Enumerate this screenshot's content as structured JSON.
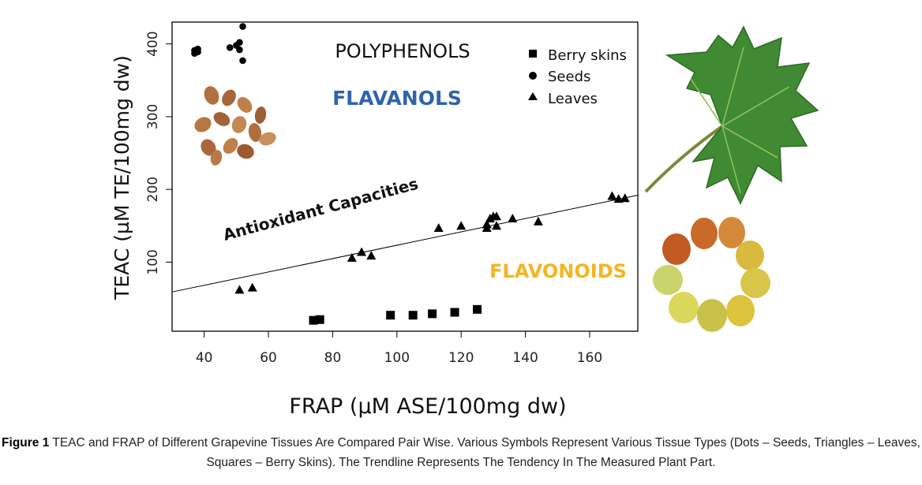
{
  "chart_data": {
    "type": "scatter",
    "title": "",
    "xlabel": "FRAP (µM ASE/100mg dw)",
    "ylabel": "TEAC (µM TE/100mg dw)",
    "xlim": [
      30,
      175
    ],
    "ylim": [
      5,
      430
    ],
    "xticks": [
      40,
      60,
      80,
      100,
      120,
      140,
      160
    ],
    "yticks": [
      100,
      200,
      300,
      400
    ],
    "grid": false,
    "legend_position": "top-right",
    "series": [
      {
        "name": "Berry skins",
        "marker": "square",
        "points": [
          [
            74,
            20
          ],
          [
            76,
            21
          ],
          [
            98,
            27
          ],
          [
            105,
            27
          ],
          [
            111,
            29
          ],
          [
            118,
            31
          ],
          [
            125,
            35
          ]
        ]
      },
      {
        "name": "Seeds",
        "marker": "circle",
        "points": [
          [
            37,
            391
          ],
          [
            37,
            387
          ],
          [
            38,
            393
          ],
          [
            38,
            389
          ],
          [
            48,
            395
          ],
          [
            50,
            398
          ],
          [
            51,
            402
          ],
          [
            51,
            392
          ],
          [
            52,
            424
          ],
          [
            52,
            377
          ]
        ]
      },
      {
        "name": "Leaves",
        "marker": "triangle",
        "points": [
          [
            51,
            62
          ],
          [
            55,
            65
          ],
          [
            86,
            106
          ],
          [
            89,
            114
          ],
          [
            92,
            109
          ],
          [
            113,
            147
          ],
          [
            120,
            150
          ],
          [
            128,
            147
          ],
          [
            128,
            152
          ],
          [
            129,
            160
          ],
          [
            130,
            163
          ],
          [
            131,
            150
          ],
          [
            131,
            163
          ],
          [
            136,
            160
          ],
          [
            144,
            156
          ],
          [
            167,
            191
          ],
          [
            169,
            187
          ],
          [
            171,
            188
          ]
        ]
      }
    ],
    "trendline": {
      "x": [
        30,
        175
      ],
      "y": [
        59,
        192
      ]
    },
    "annotations": {
      "polyphenols": "POLYPHENOLS",
      "flavanols": "FLAVANOLS",
      "flavonoids": "FLAVONOIDS",
      "antioxidant": "Antioxidant Capacities"
    },
    "colors": {
      "marker": "#000000",
      "flavanols": "#2f63ad",
      "flavonoids": "#f3b522",
      "trendline": "#000000"
    }
  },
  "caption": {
    "label": "Figure 1",
    "text": " TEAC and FRAP of Different Grapevine Tissues Are Compared Pair Wise. Various Symbols Represent Various Tissue Types (Dots – Seeds, Triangles – Leaves, Squares – Berry Skins). The Trendline Represents The Tendency In The Measured Plant Part."
  },
  "illustrations": [
    "grape-seeds-photo",
    "grape-leaf-photo",
    "grape-berries-ring-photo"
  ]
}
